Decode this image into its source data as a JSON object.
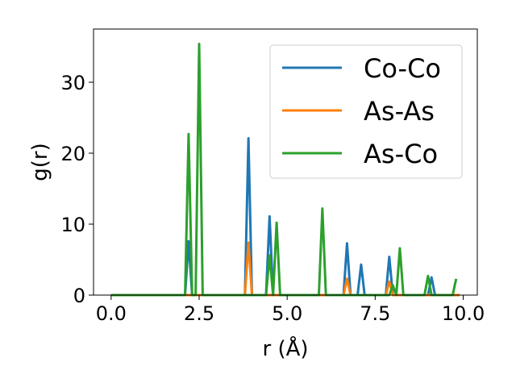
{
  "chart_data": {
    "type": "line",
    "title": "",
    "xlabel": "r (Å)",
    "ylabel": "g(r)",
    "xlim": [
      -0.5,
      10.4
    ],
    "ylim": [
      0,
      37.5
    ],
    "xticks": [
      0.0,
      2.5,
      5.0,
      7.5,
      10.0
    ],
    "xtick_labels": [
      "0.0",
      "2.5",
      "5.0",
      "7.5",
      "10.0"
    ],
    "yticks": [
      0,
      10,
      20,
      30
    ],
    "ytick_labels": [
      "0",
      "10",
      "20",
      "30"
    ],
    "grid": false,
    "legend_position": "top-right",
    "series": [
      {
        "name": "Co-Co",
        "color": "#1f77b4",
        "points": [
          [
            0.0,
            0
          ],
          [
            2.1,
            0
          ],
          [
            2.2,
            7.6
          ],
          [
            2.3,
            0
          ],
          [
            3.8,
            0
          ],
          [
            3.9,
            22.1
          ],
          [
            4.0,
            0
          ],
          [
            4.4,
            0
          ],
          [
            4.5,
            11.1
          ],
          [
            4.6,
            0
          ],
          [
            6.6,
            0
          ],
          [
            6.7,
            7.3
          ],
          [
            6.8,
            0
          ],
          [
            7.0,
            0
          ],
          [
            7.1,
            4.3
          ],
          [
            7.2,
            0
          ],
          [
            7.8,
            0
          ],
          [
            7.9,
            5.4
          ],
          [
            8.0,
            0
          ],
          [
            9.0,
            0
          ],
          [
            9.1,
            2.5
          ],
          [
            9.2,
            0
          ],
          [
            9.9,
            0
          ]
        ]
      },
      {
        "name": "As-As",
        "color": "#ff7f0e",
        "points": [
          [
            0.0,
            0
          ],
          [
            3.8,
            0
          ],
          [
            3.9,
            7.4
          ],
          [
            4.0,
            0
          ],
          [
            6.6,
            0
          ],
          [
            6.7,
            2.3
          ],
          [
            6.8,
            0
          ],
          [
            7.8,
            0
          ],
          [
            7.9,
            1.9
          ],
          [
            8.0,
            0
          ],
          [
            9.9,
            0
          ]
        ]
      },
      {
        "name": "As-Co",
        "color": "#2ca02c",
        "points": [
          [
            0.0,
            0
          ],
          [
            2.1,
            0
          ],
          [
            2.2,
            22.7
          ],
          [
            2.3,
            0
          ],
          [
            2.4,
            0
          ],
          [
            2.5,
            35.4
          ],
          [
            2.6,
            0
          ],
          [
            4.4,
            0
          ],
          [
            4.5,
            5.6
          ],
          [
            4.6,
            0
          ],
          [
            4.7,
            10.2
          ],
          [
            4.8,
            0
          ],
          [
            5.9,
            0
          ],
          [
            6.0,
            12.2
          ],
          [
            6.1,
            0
          ],
          [
            7.9,
            0
          ],
          [
            8.0,
            1.4
          ],
          [
            8.1,
            0
          ],
          [
            8.2,
            6.6
          ],
          [
            8.3,
            0
          ],
          [
            8.9,
            0
          ],
          [
            9.0,
            2.7
          ],
          [
            9.1,
            0
          ],
          [
            9.7,
            0
          ],
          [
            9.8,
            2.3
          ]
        ]
      }
    ]
  }
}
